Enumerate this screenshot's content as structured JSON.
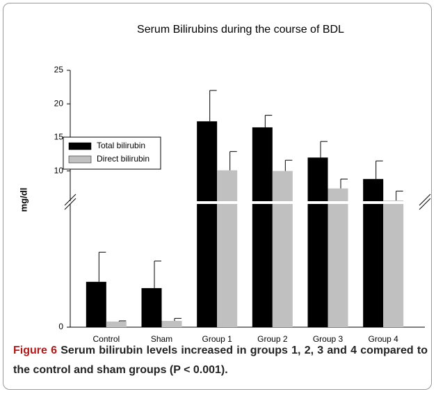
{
  "chart_data": {
    "type": "bar",
    "title": "Serum Bilirubins during the course  of BDL",
    "ylabel": "mg/dl",
    "categories": [
      "Control",
      "Sham",
      "Group 1",
      "Group 2",
      "Group 3",
      "Group 4"
    ],
    "series": [
      {
        "name": "Total bilirubin",
        "color": "#000000",
        "values": [
          0.72,
          0.62,
          17.4,
          16.5,
          12.0,
          8.8
        ],
        "errors": [
          0.47,
          0.43,
          4.6,
          1.8,
          2.4,
          2.7
        ]
      },
      {
        "name": "Direct bilirubin",
        "color": "#c0c0c0",
        "values": [
          0.09,
          0.1,
          10.1,
          10.0,
          7.4,
          5.6
        ],
        "errors": [
          0.01,
          0.04,
          2.8,
          1.6,
          1.4,
          1.4
        ]
      }
    ],
    "ylim": [
      0,
      25
    ],
    "axis_break": [
      2,
      5.5
    ],
    "yticks": [
      0,
      10,
      15,
      20,
      25
    ],
    "legend": "left",
    "caption_label": "Figure 6",
    "caption": "Serum bilirubin levels increased in groups 1, 2, 3 and 4 compared to the control and sham groups (P < 0.001)."
  }
}
